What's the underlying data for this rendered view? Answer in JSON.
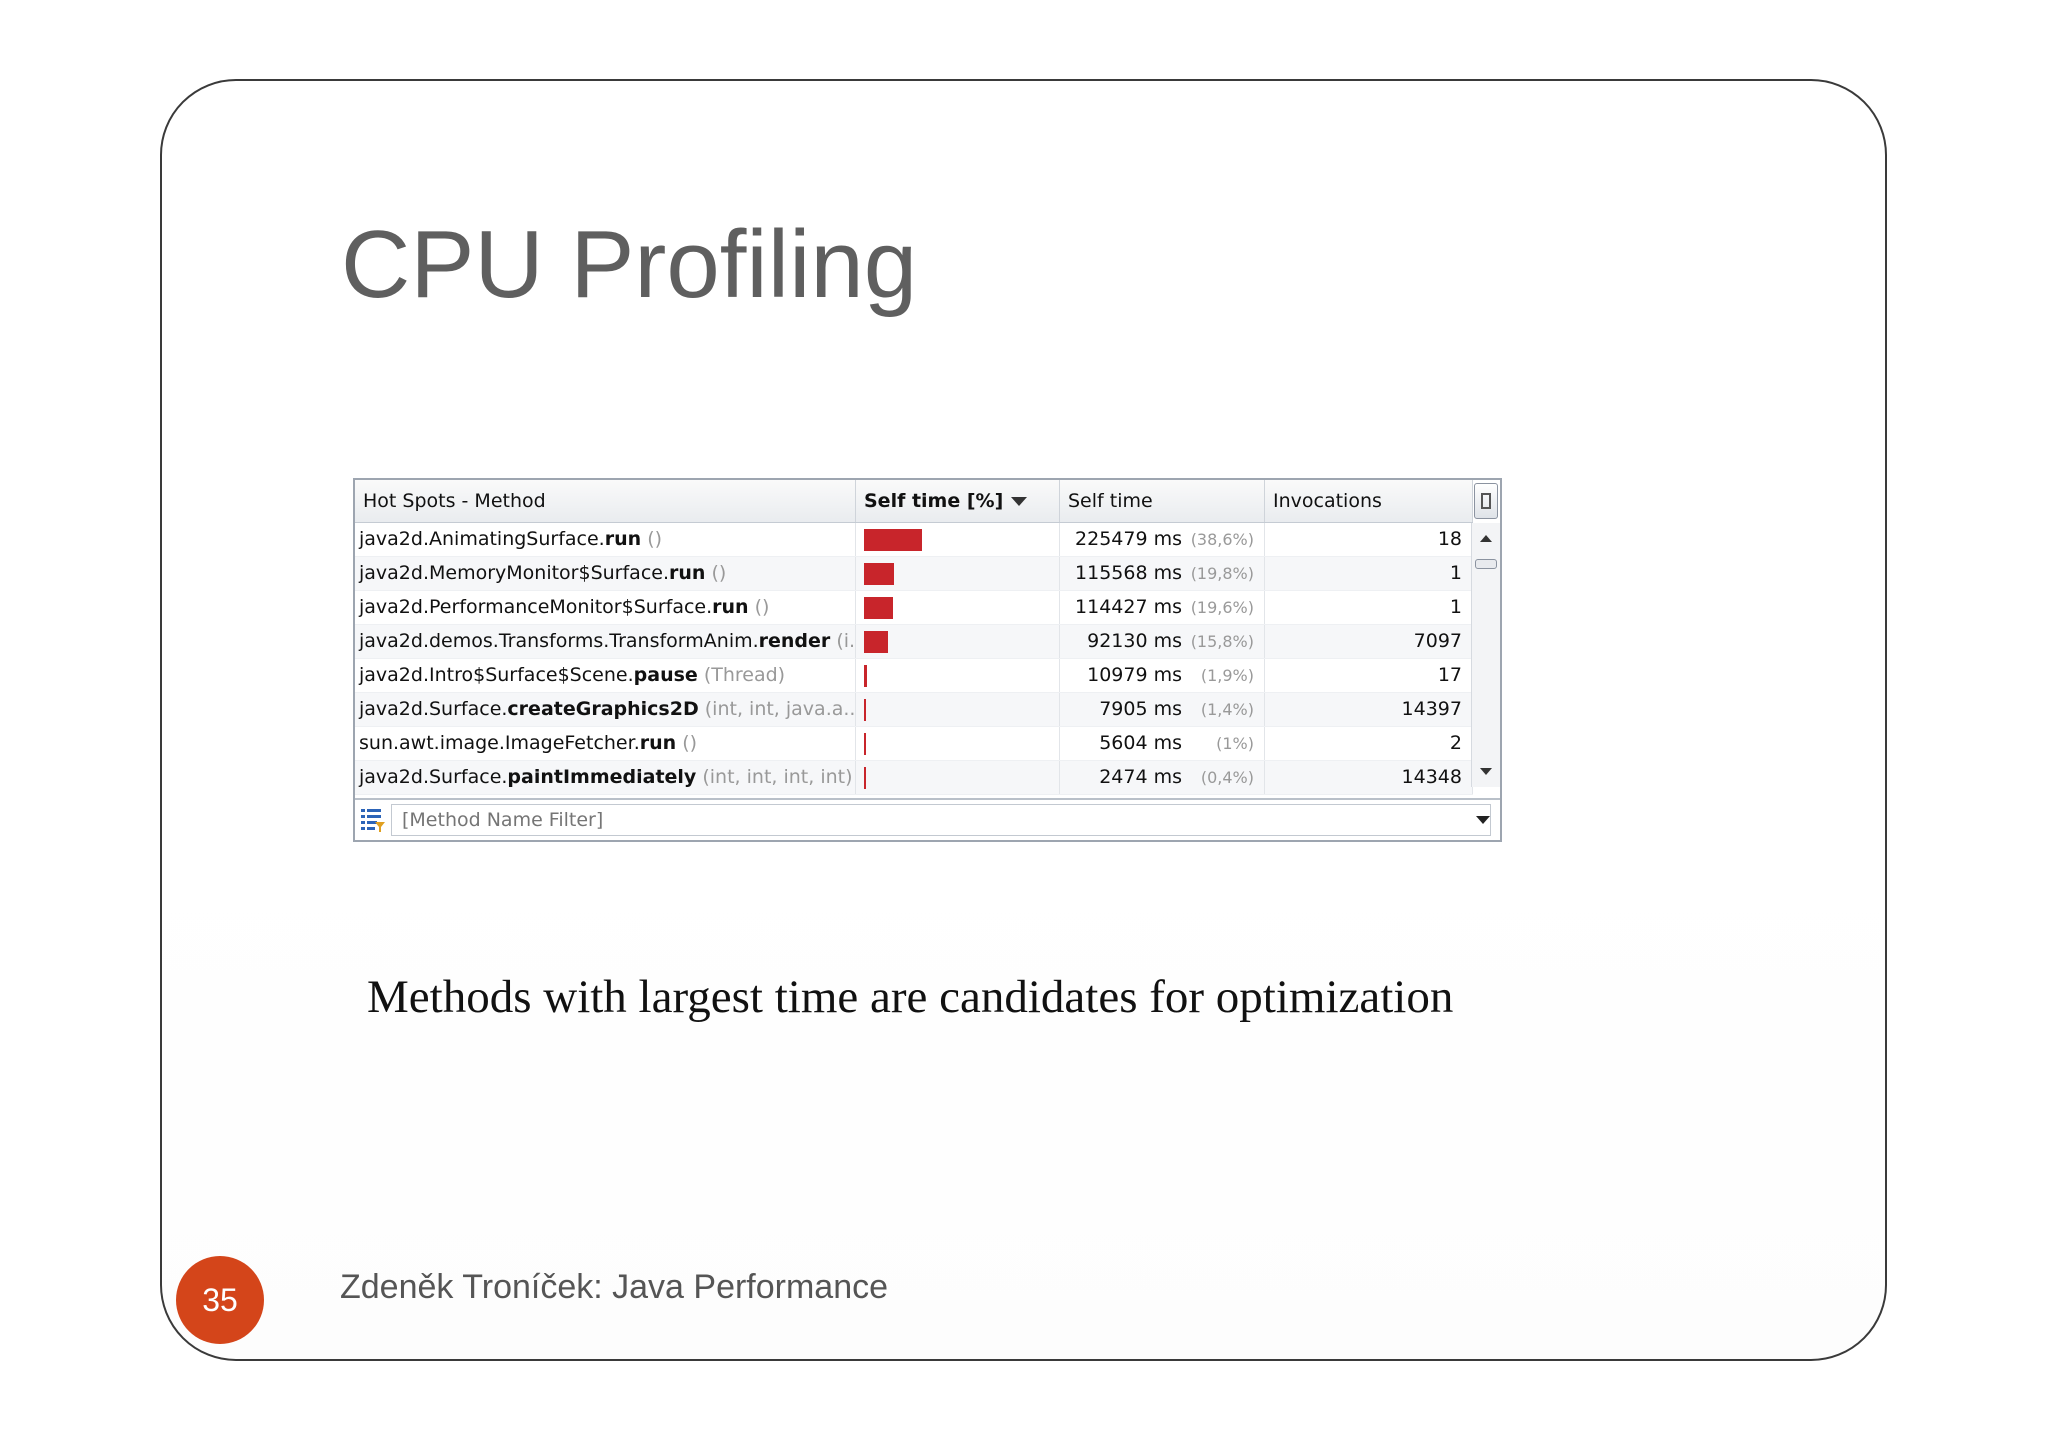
{
  "slide": {
    "title": "CPU Profiling",
    "caption": "Methods with largest time are candidates for optimization",
    "page_number": "35",
    "footer": "Zdeněk Troníček: Java Performance"
  },
  "profiler": {
    "headers": {
      "method": "Hot Spots - Method",
      "self_pct": "Self time [%]",
      "self_time": "Self time",
      "invocations": "Invocations"
    },
    "rows": [
      {
        "cls": "java2d.AnimatingSurface.",
        "name": "run",
        "params": " ()",
        "fraction": 0.386,
        "time": "225479 ms",
        "pct": "(38,6%)",
        "inv": "18"
      },
      {
        "cls": "java2d.MemoryMonitor$Surface.",
        "name": "run",
        "params": " ()",
        "fraction": 0.198,
        "time": "115568 ms",
        "pct": "(19,8%)",
        "inv": "1"
      },
      {
        "cls": "java2d.PerformanceMonitor$Surface.",
        "name": "run",
        "params": " ()",
        "fraction": 0.196,
        "time": "114427 ms",
        "pct": "(19,6%)",
        "inv": "1"
      },
      {
        "cls": "java2d.demos.Transforms.TransformAnim.",
        "name": "render",
        "params": " (i...",
        "fraction": 0.158,
        "time": "92130 ms",
        "pct": "(15,8%)",
        "inv": "7097"
      },
      {
        "cls": "java2d.Intro$Surface$Scene.",
        "name": "pause",
        "params": " (Thread)",
        "fraction": 0.019,
        "time": "10979 ms",
        "pct": "(1,9%)",
        "inv": "17"
      },
      {
        "cls": "java2d.Surface.",
        "name": "createGraphics2D",
        "params": " (int, int, java.a...",
        "fraction": 0.014,
        "time": "7905 ms",
        "pct": "(1,4%)",
        "inv": "14397"
      },
      {
        "cls": "sun.awt.image.ImageFetcher.",
        "name": "run",
        "params": " ()",
        "fraction": 0.01,
        "time": "5604 ms",
        "pct": "(1%)",
        "inv": "2"
      },
      {
        "cls": "java2d.Surface.",
        "name": "paintImmediately",
        "params": " (int, int, int, int)",
        "fraction": 0.004,
        "time": "2474 ms",
        "pct": "(0,4%)",
        "inv": "14348"
      }
    ],
    "filter": {
      "placeholder": "[Method Name Filter]",
      "icon": "filter-list-icon"
    },
    "colors": {
      "bar": "#c8252b",
      "badge": "#d4451a"
    }
  }
}
